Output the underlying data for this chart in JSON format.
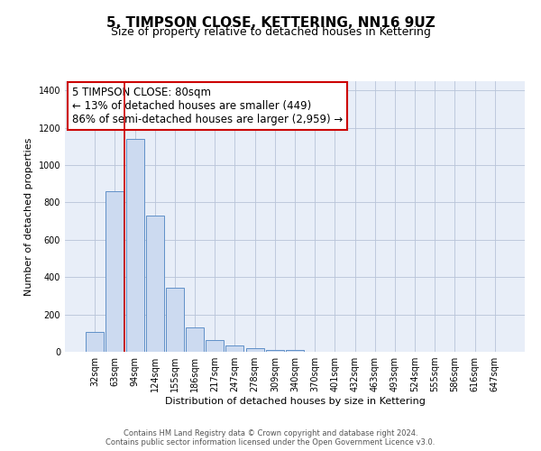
{
  "title": "5, TIMPSON CLOSE, KETTERING, NN16 9UZ",
  "subtitle": "Size of property relative to detached houses in Kettering",
  "xlabel": "Distribution of detached houses by size in Kettering",
  "ylabel": "Number of detached properties",
  "categories": [
    "32sqm",
    "63sqm",
    "94sqm",
    "124sqm",
    "155sqm",
    "186sqm",
    "217sqm",
    "247sqm",
    "278sqm",
    "309sqm",
    "340sqm",
    "370sqm",
    "401sqm",
    "432sqm",
    "463sqm",
    "493sqm",
    "524sqm",
    "555sqm",
    "586sqm",
    "616sqm",
    "647sqm"
  ],
  "values": [
    105,
    860,
    1140,
    730,
    345,
    130,
    62,
    32,
    18,
    12,
    8,
    0,
    0,
    0,
    0,
    0,
    0,
    0,
    0,
    0,
    0
  ],
  "bar_color": "#ccdaf0",
  "bar_edge_color": "#6090c8",
  "vline_color": "#cc0000",
  "annotation_lines": [
    "5 TIMPSON CLOSE: 80sqm",
    "← 13% of detached houses are smaller (449)",
    "86% of semi-detached houses are larger (2,959) →"
  ],
  "ylim": [
    0,
    1450
  ],
  "yticks": [
    0,
    200,
    400,
    600,
    800,
    1000,
    1200,
    1400
  ],
  "plot_bg_color": "#e8eef8",
  "grid_color": "#b8c4d8",
  "footer_line1": "Contains HM Land Registry data © Crown copyright and database right 2024.",
  "footer_line2": "Contains public sector information licensed under the Open Government Licence v3.0.",
  "title_fontsize": 11,
  "subtitle_fontsize": 9,
  "annotation_fontsize": 8.5,
  "tick_fontsize": 7,
  "axis_label_fontsize": 8,
  "footer_fontsize": 6
}
